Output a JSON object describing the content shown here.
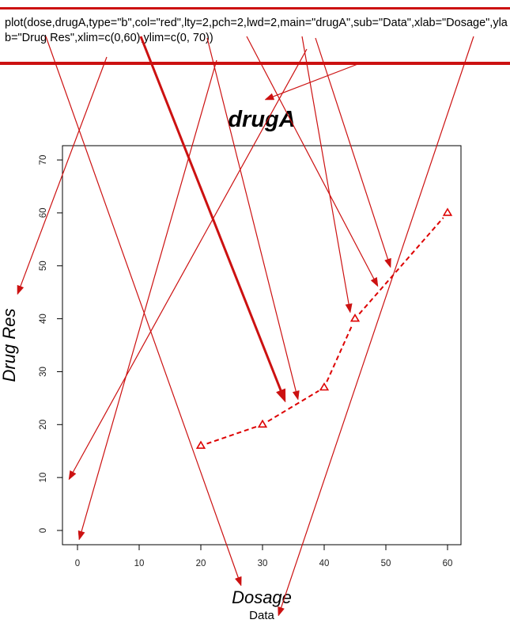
{
  "code": "plot(dose,drugA,type=\"b\",col=\"red\",lty=2,pch=2,lwd=2,main=\"drugA\",sub=\"Data\",xlab=\"Dosage\",ylab=\"Drug Res\",xlim=c(0,60),ylim=c(0, 70))",
  "chart_data": {
    "type": "line",
    "title": "drugA",
    "subtitle": "Data",
    "xlabel": "Dosage",
    "ylabel": "Drug Res",
    "xlim": [
      0,
      60
    ],
    "ylim": [
      0,
      70
    ],
    "x_ticks": [
      "0",
      "10",
      "20",
      "30",
      "40",
      "50",
      "60"
    ],
    "y_ticks": [
      "0",
      "10",
      "20",
      "30",
      "40",
      "50",
      "60",
      "70"
    ],
    "series": [
      {
        "x": [
          20,
          30,
          40,
          45,
          60
        ],
        "y": [
          16,
          20,
          27,
          40,
          60
        ],
        "color": "#dd0000",
        "marker": "triangle-open",
        "line_style": "dashed"
      }
    ]
  },
  "annotation_color": "#cc1111"
}
